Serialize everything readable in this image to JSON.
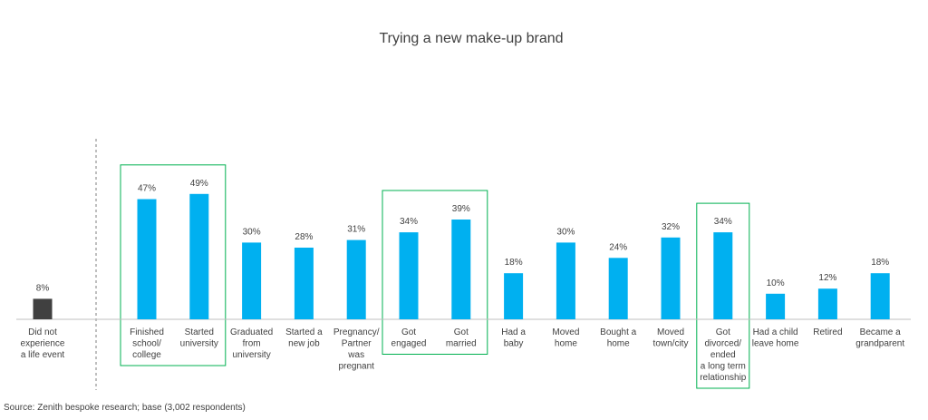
{
  "chart_data": {
    "type": "bar",
    "title": "Trying a new make-up brand",
    "xlabel": "",
    "ylabel": "",
    "ylim": [
      0,
      50
    ],
    "categories": [
      [
        "Did not",
        "experience",
        "a life event"
      ],
      [
        "Finished",
        "school/",
        "college"
      ],
      [
        "Started",
        "university"
      ],
      [
        "Graduated",
        "from",
        "university"
      ],
      [
        "Started a",
        "new job"
      ],
      [
        "Pregnancy/",
        "Partner",
        "was",
        "pregnant"
      ],
      [
        "Got",
        "engaged"
      ],
      [
        "Got",
        "married"
      ],
      [
        "Had a",
        "baby"
      ],
      [
        "Moved",
        "home"
      ],
      [
        "Bought a",
        "home"
      ],
      [
        "Moved",
        "town/city"
      ],
      [
        "Got",
        "divorced/",
        "ended",
        "a long term",
        "relationship"
      ],
      [
        "Had a child",
        "leave home"
      ],
      [
        "Retired"
      ],
      [
        "Became a",
        "grandparent"
      ]
    ],
    "values": [
      8,
      47,
      49,
      30,
      28,
      31,
      34,
      39,
      18,
      30,
      24,
      32,
      34,
      10,
      12,
      18
    ],
    "value_labels": [
      "8%",
      "47%",
      "49%",
      "30%",
      "28%",
      "31%",
      "34%",
      "39%",
      "18%",
      "30%",
      "24%",
      "32%",
      "34%",
      "10%",
      "12%",
      "18%"
    ],
    "highlight_groups": [
      [
        1,
        2
      ],
      [
        6,
        7
      ],
      [
        12
      ]
    ],
    "colors": {
      "baseline_bar": "#404040",
      "bar": "#00b0f0",
      "highlight_border": "#00b050",
      "divider": "#7f7f7f",
      "axis": "#bfbfbf"
    },
    "grid": false,
    "legend": "none"
  },
  "source": "Source: Zenith bespoke research; base (3,002 respondents)"
}
